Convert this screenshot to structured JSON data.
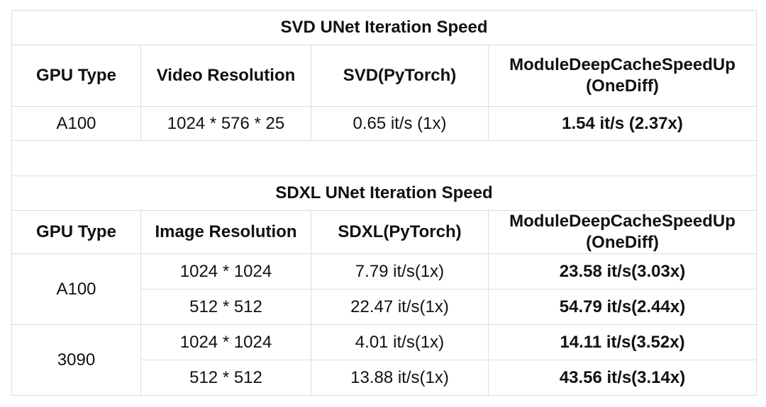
{
  "svd": {
    "title": "SVD UNet Iteration Speed",
    "headers": [
      "GPU Type",
      "Video Resolution",
      "SVD(PyTorch)",
      "ModuleDeepCacheSpeedUp",
      "(OneDiff)"
    ],
    "rows": [
      {
        "gpu": "A100",
        "resolution": "1024 * 576 * 25",
        "pytorch": "0.65 it/s (1x)",
        "onediff": "1.54 it/s (2.37x)"
      }
    ]
  },
  "sdxl": {
    "title": "SDXL UNet Iteration Speed",
    "headers": [
      "GPU Type",
      "Image Resolution",
      "SDXL(PyTorch)",
      "ModuleDeepCacheSpeedUp",
      "(OneDiff)"
    ],
    "groups": [
      {
        "gpu": "A100",
        "rows": [
          {
            "resolution": "1024 * 1024",
            "pytorch": "7.79 it/s(1x)",
            "onediff": "23.58 it/s(3.03x)"
          },
          {
            "resolution": "512 * 512",
            "pytorch": "22.47 it/s(1x)",
            "onediff": "54.79 it/s(2.44x)"
          }
        ]
      },
      {
        "gpu": "3090",
        "rows": [
          {
            "resolution": "1024 * 1024",
            "pytorch": "4.01 it/s(1x)",
            "onediff": "14.11 it/s(3.52x)"
          },
          {
            "resolution": "512 * 512",
            "pytorch": "13.88 it/s(1x)",
            "onediff": "43.56 it/s(3.14x)"
          }
        ]
      }
    ]
  }
}
